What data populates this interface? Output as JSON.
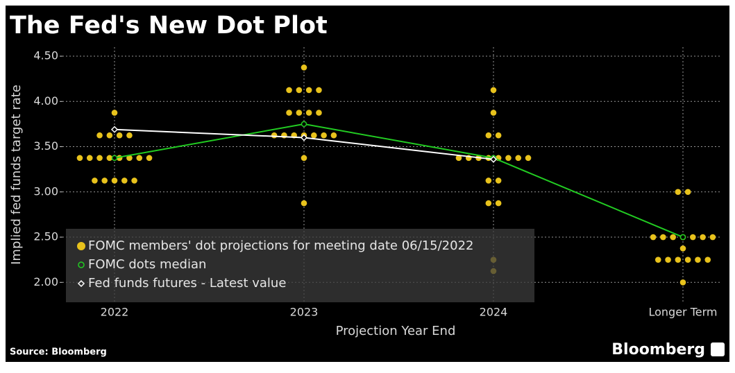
{
  "chart_data": {
    "type": "dot_plot",
    "title": "The Fed's New Dot Plot",
    "y_label": "Implied fed funds target rate",
    "x_label": "Projection Year End",
    "source": "Source: Bloomberg",
    "brand": "Bloomberg",
    "categories": [
      "2022",
      "2023",
      "2024",
      "Longer Term"
    ],
    "ylim": [
      1.78,
      4.6
    ],
    "yticks": [
      {
        "value": 2,
        "label": "2.00"
      },
      {
        "value": 2.5,
        "label": "2.50"
      },
      {
        "value": 3,
        "label": "3.00"
      },
      {
        "value": 3.5,
        "label": "3.50"
      },
      {
        "value": 4,
        "label": "4.00"
      },
      {
        "value": 4.5,
        "label": "4.50"
      }
    ],
    "grid": true,
    "series": [
      {
        "name": "FOMC members' dot projections for meeting date 06/15/2022",
        "color": "#e8c21c",
        "marker": "dot",
        "values": [
          [
            3.875,
            3.625,
            3.625,
            3.625,
            3.625,
            3.375,
            3.375,
            3.375,
            3.375,
            3.375,
            3.375,
            3.375,
            3.375,
            3.125,
            3.125,
            3.125,
            3.125,
            3.125
          ],
          [
            4.375,
            4.125,
            4.125,
            4.125,
            4.125,
            3.875,
            3.875,
            3.875,
            3.875,
            3.625,
            3.625,
            3.625,
            3.625,
            3.625,
            3.625,
            3.625,
            3.375,
            2.875
          ],
          [
            4.125,
            3.875,
            3.625,
            3.625,
            3.375,
            3.375,
            3.375,
            3.375,
            3.375,
            3.375,
            3.375,
            3.375,
            3.125,
            3.125,
            2.875,
            2.875,
            2.25,
            2.125
          ],
          [
            3,
            3,
            2.5,
            2.5,
            2.5,
            2.5,
            2.5,
            2.5,
            2.5,
            2.375,
            2.25,
            2.25,
            2.25,
            2.25,
            2.25,
            2.25,
            2
          ]
        ]
      },
      {
        "name": "FOMC dots median",
        "color": "#22cc22",
        "marker": "circle",
        "values": [
          3.375,
          3.75,
          3.375,
          2.5
        ]
      },
      {
        "name": "Fed funds futures - Latest value",
        "color": "#ffffff",
        "marker": "diamond",
        "values": [
          3.69,
          3.6,
          3.36,
          null
        ]
      }
    ]
  }
}
